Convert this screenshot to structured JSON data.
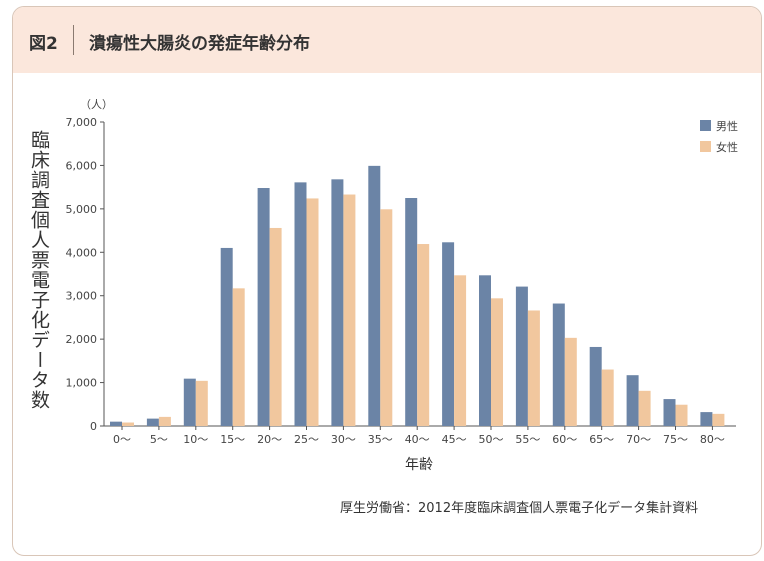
{
  "figure": {
    "label": "図2",
    "title": "潰瘍性大腸炎の発症年齢分布",
    "source": "厚生労働省：2012年度臨床調査個人票電子化データ集計資料"
  },
  "chart_data": {
    "type": "bar",
    "title": "潰瘍性大腸炎の発症年齢分布",
    "xlabel": "年齢",
    "ylabel": "臨床調査個人票電子化データ数",
    "yunit": "（人）",
    "ylim": [
      0,
      7000
    ],
    "yticks": [
      0,
      1000,
      2000,
      3000,
      4000,
      5000,
      6000,
      7000
    ],
    "ytick_labels": [
      "0",
      "1,000",
      "2,000",
      "3,000",
      "4,000",
      "5,000",
      "6,000",
      "7,000"
    ],
    "categories": [
      "0～",
      "5～",
      "10～",
      "15～",
      "20～",
      "25～",
      "30～",
      "35～",
      "40～",
      "45～",
      "50～",
      "55～",
      "60～",
      "65～",
      "70～",
      "75～",
      "80～"
    ],
    "series": [
      {
        "name": "男性",
        "color": "#6b84a6",
        "values": [
          100,
          170,
          1090,
          4100,
          5480,
          5610,
          5680,
          5990,
          5250,
          4230,
          3470,
          3210,
          2820,
          1820,
          1170,
          620,
          320
        ]
      },
      {
        "name": "女性",
        "color": "#f1c79e",
        "values": [
          80,
          210,
          1040,
          3170,
          4560,
          5240,
          5330,
          4990,
          4190,
          3470,
          2940,
          2660,
          2030,
          1300,
          810,
          490,
          280
        ]
      }
    ],
    "legend_position": "top-right",
    "grid": false
  }
}
